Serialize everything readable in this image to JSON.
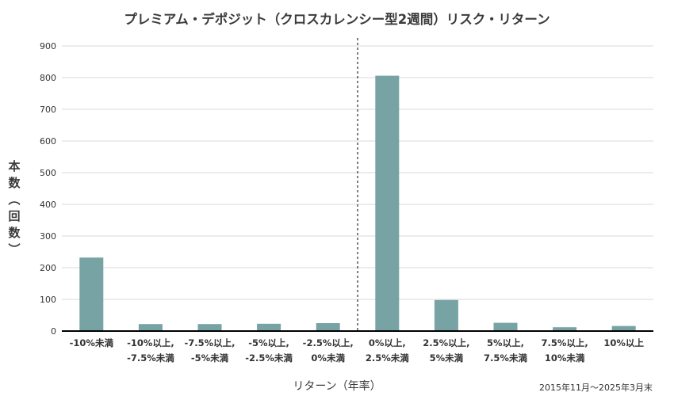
{
  "chart_data": {
    "type": "bar",
    "title": "プレミアム・デポジット（クロスカレンシー型2週間）リスク・リターン",
    "xlabel": "リターン（年率）",
    "ylabel": "本数（回数）",
    "note": "2015年11月〜2025年3月末",
    "categories": [
      [
        "-10%未満"
      ],
      [
        "-10%以上,",
        "-7.5%未満"
      ],
      [
        "-7.5%以上,",
        "-5%未満"
      ],
      [
        "-5%以上,",
        "-2.5%未満"
      ],
      [
        "-2.5%以上,",
        "0%未満"
      ],
      [
        "0%以上,",
        "2.5%未満"
      ],
      [
        "2.5%以上,",
        "5%未満"
      ],
      [
        "5%以上,",
        "7.5%未満"
      ],
      [
        "7.5%以上,",
        "10%未満"
      ],
      [
        "10%以上"
      ]
    ],
    "values": [
      232,
      22,
      22,
      23,
      25,
      806,
      98,
      26,
      12,
      16
    ],
    "ylim": [
      0,
      900
    ],
    "yticks": [
      0,
      100,
      200,
      300,
      400,
      500,
      600,
      700,
      800,
      900
    ],
    "grid": true,
    "reference_line": {
      "between_categories": [
        4,
        5
      ],
      "style": "dashed"
    },
    "colors": {
      "bar": "#77a3a5",
      "grid": "#d9d9d9",
      "axis": "#000000"
    }
  }
}
